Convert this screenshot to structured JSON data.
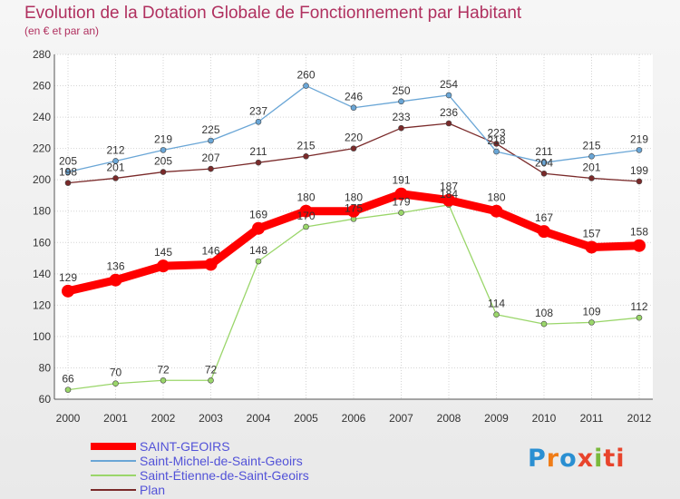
{
  "header": {
    "title": "Evolution de la Dotation Globale de Fonctionnement par Habitant",
    "subtitle": "(en € et par an)"
  },
  "brand": {
    "name": "Proxiti",
    "letters": [
      "P",
      "r",
      "o",
      "x",
      "i",
      "ti"
    ]
  },
  "chart_data": {
    "type": "line",
    "title": "Evolution de la Dotation Globale de Fonctionnement par Habitant",
    "subtitle": "(en € et par an)",
    "xlabel": "",
    "ylabel": "",
    "x": [
      "2000",
      "2001",
      "2002",
      "2003",
      "2004",
      "2005",
      "2006",
      "2007",
      "2008",
      "2009",
      "2010",
      "2011",
      "2012"
    ],
    "ylim": [
      60,
      280
    ],
    "yticks": [
      60,
      80,
      100,
      120,
      140,
      160,
      180,
      200,
      220,
      240,
      260,
      280
    ],
    "grid": true,
    "legend_position": "bottom-left",
    "series": [
      {
        "name": "SAINT-GEOIRS",
        "color": "#ff0000",
        "values": [
          129,
          136,
          145,
          146,
          169,
          180,
          180,
          191,
          187,
          180,
          167,
          157,
          158
        ]
      },
      {
        "name": "Saint-Michel-de-Saint-Geoirs",
        "color": "#6aa6d6",
        "values": [
          205,
          212,
          219,
          225,
          237,
          260,
          246,
          250,
          254,
          218,
          211,
          215,
          219
        ]
      },
      {
        "name": "Saint-Étienne-de-Saint-Geoirs",
        "color": "#9ad66a",
        "values": [
          66,
          70,
          72,
          72,
          148,
          170,
          175,
          179,
          184,
          114,
          108,
          109,
          112
        ]
      },
      {
        "name": "Plan",
        "color": "#7a2a2a",
        "values": [
          198,
          201,
          205,
          207,
          211,
          215,
          220,
          233,
          236,
          223,
          204,
          201,
          199
        ]
      }
    ]
  }
}
